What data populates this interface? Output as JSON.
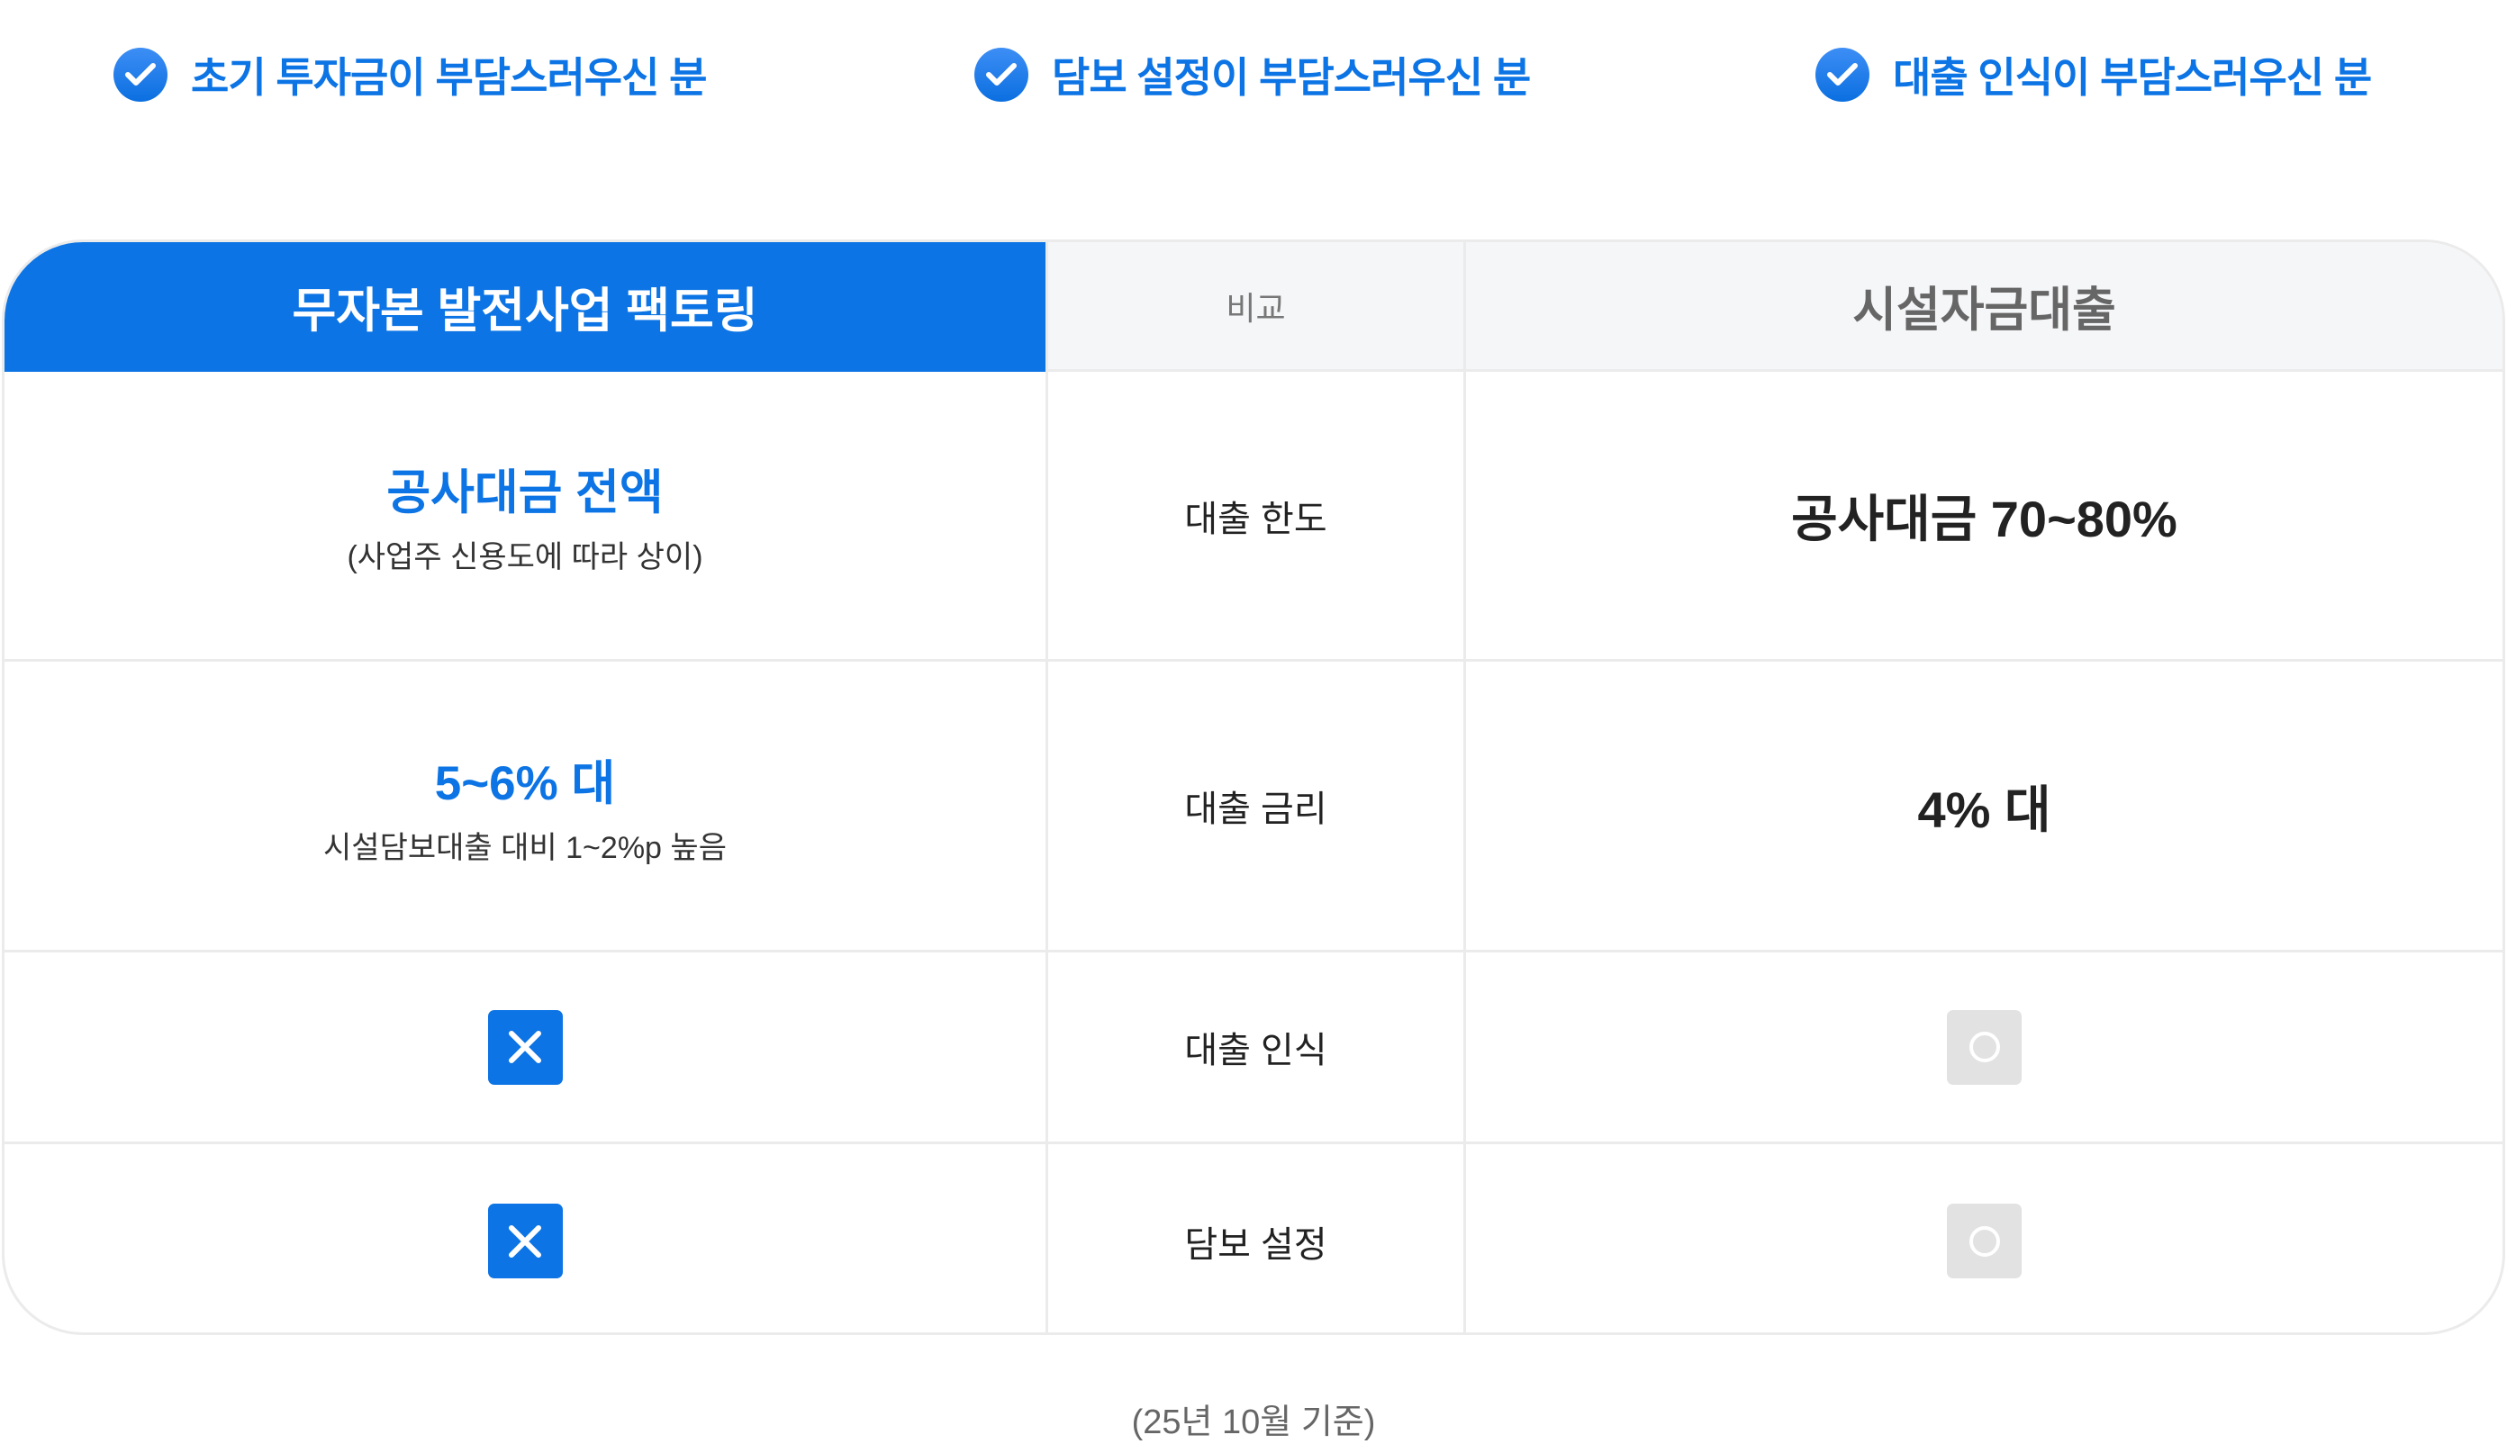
{
  "checks": [
    {
      "label": "초기 투자금이 부담스러우신 분",
      "icon": "check-circle-icon"
    },
    {
      "label": "담보 설정이 부담스러우신 분",
      "icon": "check-circle-icon"
    },
    {
      "label": "대출 인식이 부담스러우신 분",
      "icon": "check-circle-icon"
    }
  ],
  "table": {
    "headers": {
      "left": "무자본 발전사업 팩토링",
      "middle": "비교",
      "right": "시설자금대출"
    },
    "rows": [
      {
        "left": "공사대금 전액",
        "left_sub": "(사업주 신용도에 따라 상이)",
        "middle": "대출 한도",
        "right": "공사대금 70~80%"
      },
      {
        "left": "5~6% 대",
        "left_sub": "시설담보대출 대비 1~2%p 높음",
        "middle": "대출 금리",
        "right": "4% 대"
      },
      {
        "left_icon": "x-icon",
        "middle": "대출 인식",
        "right_icon": "circle-icon"
      },
      {
        "left_icon": "x-icon",
        "middle": "담보 설정",
        "right_icon": "circle-icon"
      }
    ]
  },
  "colors": {
    "accent": "#0c74e4",
    "header_gray": "#f5f6f8",
    "badge_gray": "#e2e2e2"
  },
  "footnote": "(25년 10월 기준)"
}
